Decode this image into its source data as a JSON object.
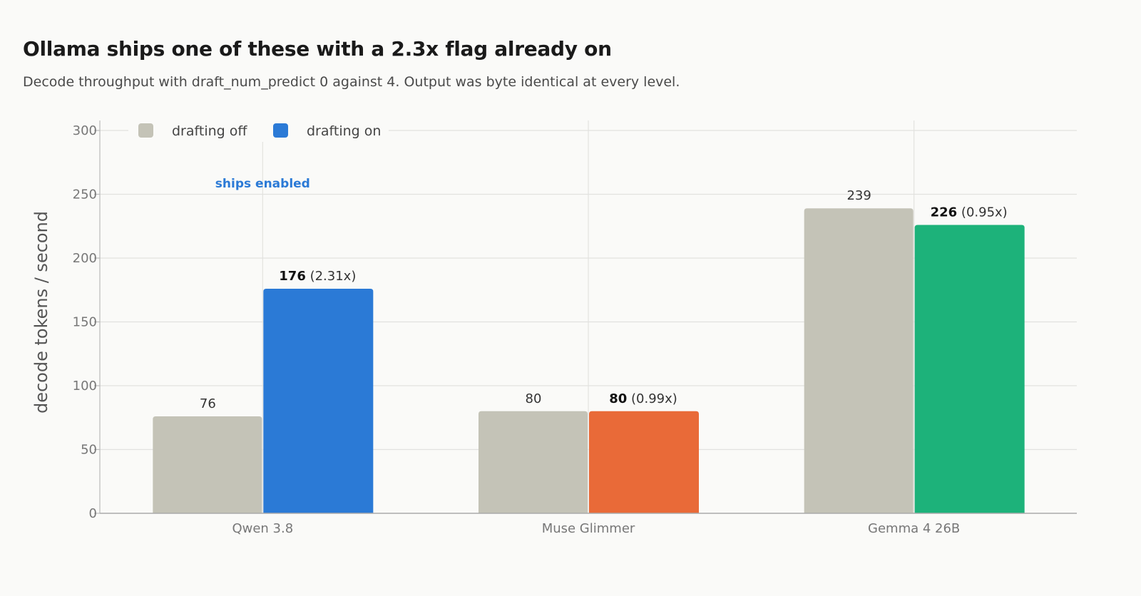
{
  "title": "Ollama ships one of these with a 2.3x flag already on",
  "subtitle": "Decode throughput with draft_num_predict 0 against 4. Output was byte identical at every level.",
  "chart_data": {
    "type": "bar",
    "categories": [
      "Qwen 3.8",
      "Muse Glimmer",
      "Gemma 4 26B"
    ],
    "series": [
      {
        "name": "drafting off",
        "values": [
          76,
          80,
          239
        ],
        "labels": [
          "76",
          "80",
          "239"
        ],
        "color": "#c4c3b7"
      },
      {
        "name": "drafting on",
        "values": [
          176,
          80,
          226
        ],
        "labels": [
          "176",
          "80",
          "226"
        ],
        "ratio_labels": [
          "(2.31x)",
          "(0.99x)",
          "(0.95x)"
        ],
        "colors": [
          "#2b7ad6",
          "#e96a38",
          "#1db27a"
        ]
      }
    ],
    "legend": {
      "position": "top-left",
      "items": [
        {
          "label": "drafting off",
          "color": "#c4c3b7"
        },
        {
          "label": "drafting on",
          "color": "#2b7ad6"
        }
      ]
    },
    "ylabel": "decode tokens / second",
    "xlabel": "",
    "ylim": [
      0,
      300
    ],
    "yticks": [
      0,
      50,
      100,
      150,
      200,
      250,
      300
    ],
    "grid": true,
    "annotation": {
      "text": "ships enabled",
      "category": "Qwen 3.8",
      "color": "#2b7ad6"
    }
  }
}
